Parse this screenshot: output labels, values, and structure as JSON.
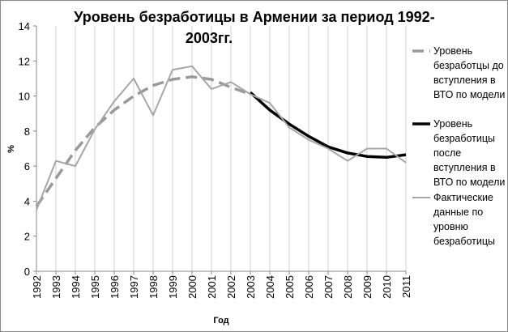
{
  "chart_data": {
    "type": "line",
    "title_lines": [
      "Уровень безработицы в Армении за период 1992-",
      "2003гг."
    ],
    "xlabel": "Год",
    "ylabel": "%",
    "ylim": [
      0,
      14
    ],
    "yticks": [
      0,
      2,
      4,
      6,
      8,
      10,
      12,
      14
    ],
    "grid": "vertical",
    "legend_position": "right",
    "x": [
      1992,
      1993,
      1994,
      1995,
      1996,
      1997,
      1998,
      1999,
      2000,
      2001,
      2002,
      2003,
      2004,
      2005,
      2006,
      2007,
      2008,
      2009,
      2010,
      2011
    ],
    "series": [
      {
        "name": "Уровень безработцы до вступления в ВТО по модели",
        "legend_lines": [
          "Уровень",
          "безработцы до",
          "вступления в",
          "ВТО по модели"
        ],
        "color": "#999999",
        "style": "dashed",
        "x": [
          1992,
          1993,
          1994,
          1995,
          1996,
          1997,
          1998,
          1999,
          2000,
          2001,
          2002,
          2003
        ],
        "values": [
          3.7,
          5.3,
          6.9,
          8.2,
          9.2,
          10.0,
          10.6,
          10.95,
          11.1,
          10.95,
          10.5,
          10.1
        ]
      },
      {
        "name": "Уровень безработицы после вступления в ВТО по модели",
        "legend_lines": [
          "Уровень",
          "безработицы",
          "после",
          "вступления в",
          "ВТО по модели"
        ],
        "color": "#000000",
        "style": "solid-thick",
        "x": [
          2003,
          2004,
          2005,
          2006,
          2007,
          2008,
          2009,
          2010,
          2011
        ],
        "values": [
          10.2,
          9.2,
          8.4,
          7.7,
          7.1,
          6.75,
          6.55,
          6.5,
          6.65
        ]
      },
      {
        "name": "Фактические данные по уровню безработицы",
        "legend_lines": [
          "Фактические",
          "данные по",
          "уровню",
          "безработицы"
        ],
        "color": "#a6a6a6",
        "style": "solid",
        "x": [
          1992,
          1993,
          1994,
          1995,
          1996,
          1997,
          1998,
          1999,
          2000,
          2001,
          2002,
          2003,
          2004,
          2005,
          2006,
          2007,
          2008,
          2009,
          2010,
          2011
        ],
        "values": [
          3.5,
          6.3,
          6.0,
          8.1,
          9.7,
          11.0,
          8.9,
          11.5,
          11.7,
          10.4,
          10.8,
          10.1,
          9.6,
          8.2,
          7.5,
          7.0,
          6.3,
          7.0,
          7.0,
          6.2
        ]
      }
    ]
  }
}
